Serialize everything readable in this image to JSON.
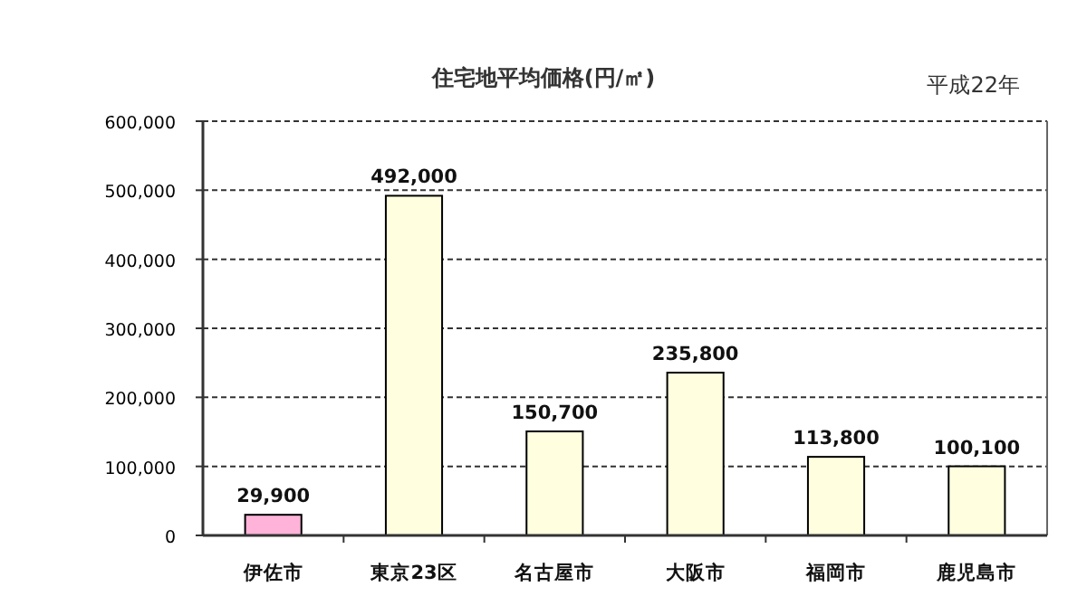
{
  "chart_data": {
    "type": "bar",
    "title": "住宅地平均価格(円/㎡)",
    "subtitle": "平成22年",
    "categories": [
      "伊佐市",
      "東京23区",
      "名古屋市",
      "大阪市",
      "福岡市",
      "鹿児島市"
    ],
    "values": [
      29900,
      492000,
      150700,
      235800,
      113800,
      100100
    ],
    "colors": [
      "#ffb3d9",
      "#ffffe0",
      "#ffffe0",
      "#ffffe0",
      "#ffffe0",
      "#ffffe0"
    ],
    "ylim": [
      0,
      600000
    ],
    "yticks": [
      {
        "value": 0,
        "label": "0"
      },
      {
        "value": 100000,
        "label": "100,000"
      },
      {
        "value": 200000,
        "label": "200,000"
      },
      {
        "value": 300000,
        "label": "300,000"
      },
      {
        "value": 400000,
        "label": "400,000"
      },
      {
        "value": 500000,
        "label": "500,000"
      },
      {
        "value": 600000,
        "label": "600,000"
      }
    ],
    "value_labels": [
      "29,900",
      "492,000",
      "150,700",
      "235,800",
      "113,800",
      "100,100"
    ],
    "grid": "y"
  }
}
